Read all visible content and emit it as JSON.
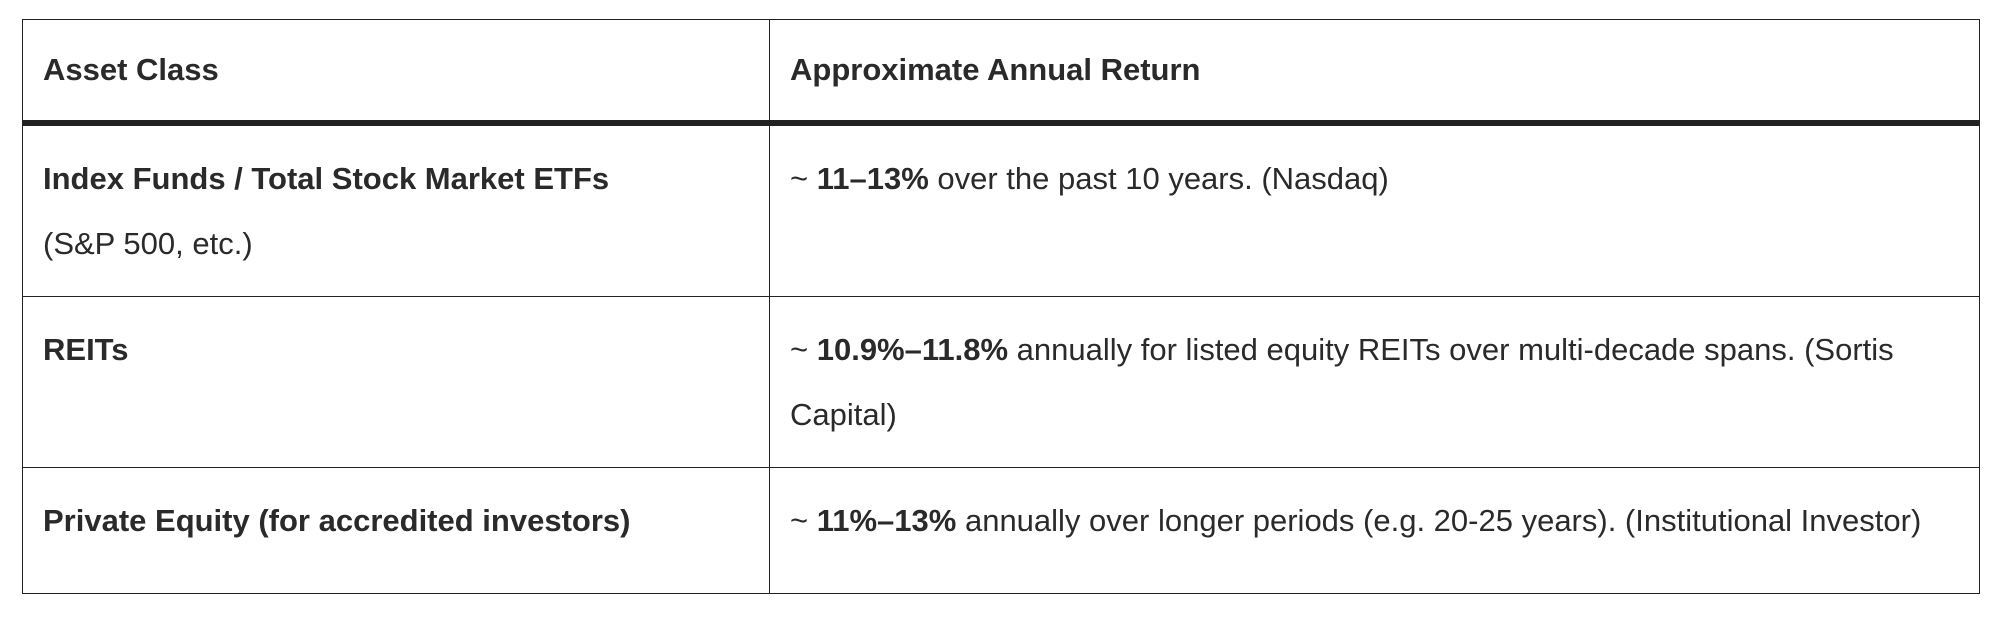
{
  "table": {
    "headers": [
      "Asset Class",
      "Approximate Annual Return"
    ],
    "rows": [
      [
        [
          {
            "text": "Index Funds / Total Stock Market ETFs",
            "bold": true
          },
          {
            "text": "(S&P 500, etc.)",
            "bold": false,
            "break": true
          }
        ],
        [
          {
            "text": "~ ",
            "bold": false
          },
          {
            "text": "11–13%",
            "bold": true
          },
          {
            "text": " over the past 10 years. (Nasdaq)",
            "bold": false
          }
        ]
      ],
      [
        [
          {
            "text": "REITs",
            "bold": true
          }
        ],
        [
          {
            "text": "~ ",
            "bold": false
          },
          {
            "text": "10.9%–11.8%",
            "bold": true
          },
          {
            "text": " annually for listed equity REITs over multi-decade spans. (Sortis Capital)",
            "bold": false
          }
        ]
      ],
      [
        [
          {
            "text": "Private Equity (for accredited investors)",
            "bold": true
          }
        ],
        [
          {
            "text": "~ ",
            "bold": false
          },
          {
            "text": "11%–13%",
            "bold": true
          },
          {
            "text": " annually over longer periods (e.g. 20-25 years). (Institutional Investor)",
            "bold": false
          }
        ]
      ]
    ]
  }
}
